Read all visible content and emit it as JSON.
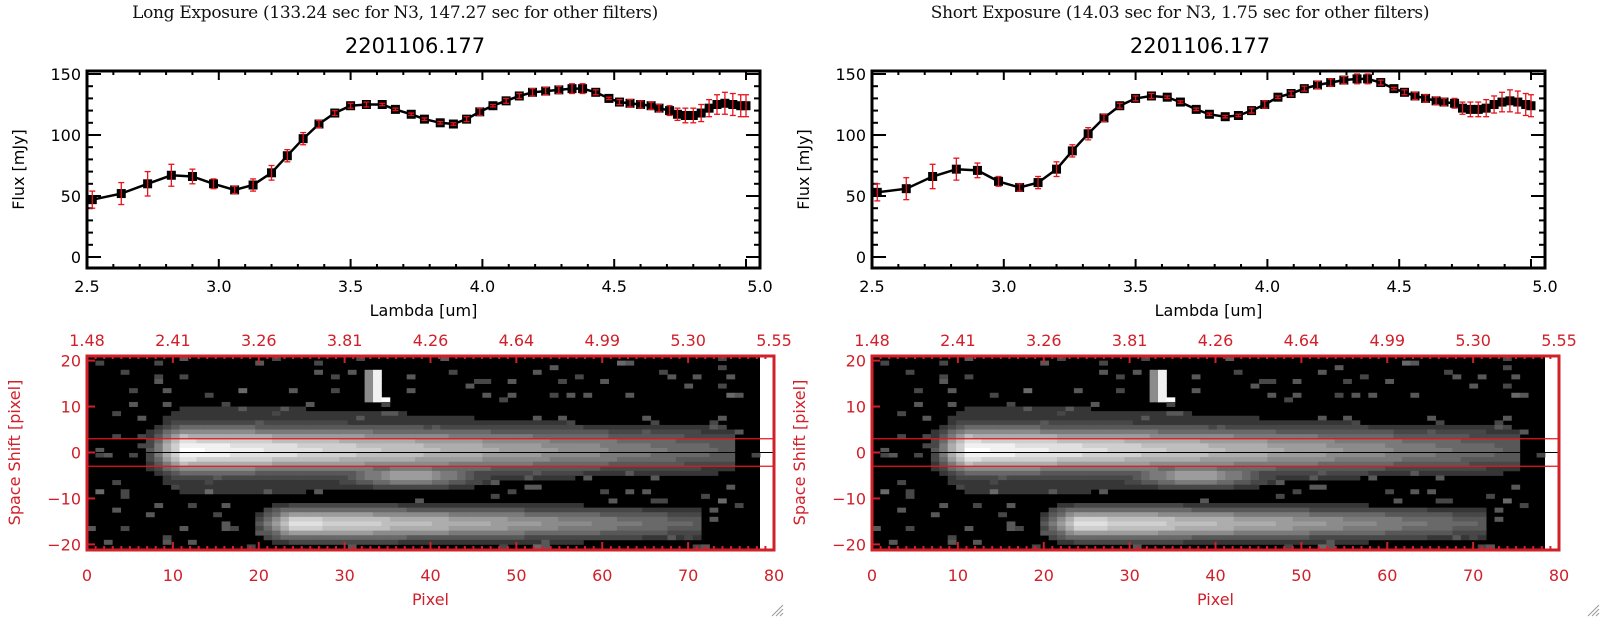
{
  "panels": [
    {
      "id": "long",
      "exposure_title": "Long Exposure (133.24 sec for N3, 147.27 sec for other filters)",
      "object_title": "2201106.177"
    },
    {
      "id": "short",
      "exposure_title": "Short Exposure (14.03 sec for N3, 1.75 sec for other filters)",
      "object_title": "2201106.177"
    }
  ],
  "colors": {
    "line": "#000000",
    "errorbar": "#e8141c",
    "image_frame": "#d0202a",
    "aperture": "#e8141c",
    "center": "#000000"
  },
  "chart_data": [
    {
      "type": "line",
      "panel": "long",
      "title": "2201106.177",
      "xlabel": "Lambda [um]",
      "ylabel": "Flux [mJy]",
      "xlim": [
        2.5,
        5.0
      ],
      "ylim": [
        -3,
        155
      ],
      "xticks": [
        2.5,
        3.0,
        3.5,
        4.0,
        4.5,
        5.0
      ],
      "xtick_labels": [
        "2.5",
        "3.0",
        "3.5",
        "4.0",
        "4.5",
        "5.0"
      ],
      "yticks": [
        0,
        50,
        100,
        150
      ],
      "ytick_labels": [
        "0",
        "50",
        "100",
        "150"
      ],
      "grid": false,
      "series": [
        {
          "name": "flux",
          "x": [
            2.52,
            2.63,
            2.73,
            2.82,
            2.9,
            2.98,
            3.06,
            3.13,
            3.2,
            3.26,
            3.32,
            3.38,
            3.44,
            3.5,
            3.56,
            3.62,
            3.67,
            3.73,
            3.78,
            3.84,
            3.89,
            3.94,
            3.99,
            4.04,
            4.09,
            4.14,
            4.19,
            4.24,
            4.29,
            4.34,
            4.38,
            4.43,
            4.48,
            4.52,
            4.56,
            4.6,
            4.64,
            4.67,
            4.71,
            4.74,
            4.77,
            4.8,
            4.83,
            4.86,
            4.89,
            4.92,
            4.95,
            4.98,
            5.0
          ],
          "y": [
            47,
            52,
            60,
            67,
            66,
            60,
            55,
            59,
            69,
            83,
            97,
            109,
            118,
            124,
            125,
            125,
            121,
            117,
            113,
            110,
            109,
            113,
            119,
            124,
            128,
            132,
            135,
            136,
            137,
            138,
            138,
            135,
            130,
            127,
            126,
            125,
            124,
            122,
            120,
            117,
            116,
            116,
            118,
            122,
            125,
            126,
            125,
            124,
            124
          ],
          "err": [
            7,
            9,
            10,
            9,
            6,
            4,
            3,
            5,
            6,
            5,
            5,
            3,
            2,
            2,
            2,
            1,
            1,
            1,
            1,
            1,
            1,
            2,
            3,
            1,
            2,
            2,
            3,
            3,
            3,
            4,
            4,
            2,
            1,
            2,
            3,
            3,
            3,
            3,
            4,
            5,
            6,
            6,
            7,
            7,
            8,
            9,
            9,
            9,
            9
          ]
        }
      ]
    },
    {
      "type": "line",
      "panel": "short",
      "title": "2201106.177",
      "xlabel": "Lambda [um]",
      "ylabel": "Flux [mJy]",
      "xlim": [
        2.5,
        5.0
      ],
      "ylim": [
        -3,
        155
      ],
      "xticks": [
        2.5,
        3.0,
        3.5,
        4.0,
        4.5,
        5.0
      ],
      "xtick_labels": [
        "2.5",
        "3.0",
        "3.5",
        "4.0",
        "4.5",
        "5.0"
      ],
      "yticks": [
        0,
        50,
        100,
        150
      ],
      "ytick_labels": [
        "0",
        "50",
        "100",
        "150"
      ],
      "grid": false,
      "series": [
        {
          "name": "flux",
          "x": [
            2.52,
            2.63,
            2.73,
            2.82,
            2.9,
            2.98,
            3.06,
            3.13,
            3.2,
            3.26,
            3.32,
            3.38,
            3.44,
            3.5,
            3.56,
            3.62,
            3.67,
            3.73,
            3.78,
            3.84,
            3.89,
            3.94,
            3.99,
            4.04,
            4.09,
            4.14,
            4.19,
            4.24,
            4.29,
            4.34,
            4.38,
            4.43,
            4.48,
            4.52,
            4.56,
            4.6,
            4.64,
            4.67,
            4.71,
            4.74,
            4.77,
            4.8,
            4.83,
            4.86,
            4.89,
            4.92,
            4.95,
            4.98,
            5.0
          ],
          "y": [
            53,
            56,
            66,
            72,
            71,
            62,
            57,
            61,
            72,
            87,
            101,
            114,
            124,
            130,
            132,
            131,
            127,
            121,
            117,
            115,
            116,
            120,
            125,
            131,
            134,
            138,
            141,
            143,
            145,
            146,
            146,
            143,
            138,
            135,
            132,
            130,
            128,
            127,
            126,
            122,
            121,
            121,
            122,
            125,
            127,
            128,
            127,
            125,
            124
          ],
          "err": [
            7,
            9,
            10,
            9,
            6,
            4,
            3,
            5,
            6,
            5,
            5,
            3,
            2,
            2,
            2,
            1,
            1,
            1,
            1,
            1,
            1,
            2,
            3,
            1,
            2,
            2,
            3,
            3,
            3,
            4,
            4,
            2,
            1,
            2,
            3,
            3,
            3,
            3,
            4,
            5,
            6,
            6,
            7,
            7,
            8,
            9,
            9,
            9,
            9
          ]
        }
      ]
    },
    {
      "type": "heatmap",
      "panel": "long",
      "xlabel": "Pixel",
      "ylabel": "Space Shift [pixel]",
      "xlim": [
        0,
        80
      ],
      "ylim": [
        -21,
        21
      ],
      "xticks": [
        0,
        10,
        20,
        30,
        40,
        50,
        60,
        70,
        80
      ],
      "xtick_labels": [
        "0",
        "10",
        "20",
        "30",
        "40",
        "50",
        "60",
        "70",
        "80"
      ],
      "yticks": [
        -20,
        -10,
        0,
        10,
        20
      ],
      "ytick_labels": [
        "−20",
        "−10",
        "0",
        "10",
        "20"
      ],
      "top_tick_labels": [
        "1.48",
        "2.41",
        "3.26",
        "3.81",
        "4.26",
        "4.64",
        "4.99",
        "5.30",
        "5.55"
      ],
      "aperture_lines": [
        3,
        -3
      ],
      "center_line": 0,
      "features": [
        {
          "name": "main trace",
          "x_range": [
            6,
            76
          ],
          "y_center": 0.5,
          "peak_x": 11,
          "peak": 1.0
        },
        {
          "name": "secondary trace",
          "x_range": [
            19,
            72
          ],
          "y_center": -15.5,
          "peak_x": 24,
          "peak": 0.85
        },
        {
          "name": "upper blob",
          "x_range": [
            33,
            35
          ],
          "y_range": [
            11,
            18
          ],
          "peak": 1.0
        },
        {
          "name": "under-trace glow",
          "x_range": [
            30,
            50
          ],
          "y_center": -5,
          "peak": 0.55
        }
      ]
    },
    {
      "type": "heatmap",
      "panel": "short",
      "xlabel": "Pixel",
      "ylabel": "Space Shift [pixel]",
      "xlim": [
        0,
        80
      ],
      "ylim": [
        -21,
        21
      ],
      "xticks": [
        0,
        10,
        20,
        30,
        40,
        50,
        60,
        70,
        80
      ],
      "xtick_labels": [
        "0",
        "10",
        "20",
        "30",
        "40",
        "50",
        "60",
        "70",
        "80"
      ],
      "yticks": [
        -20,
        -10,
        0,
        10,
        20
      ],
      "ytick_labels": [
        "−20",
        "−10",
        "0",
        "10",
        "20"
      ],
      "top_tick_labels": [
        "1.48",
        "2.41",
        "3.26",
        "3.81",
        "4.26",
        "4.64",
        "4.99",
        "5.30",
        "5.55"
      ],
      "aperture_lines": [
        3,
        -3
      ],
      "center_line": 0,
      "features": [
        {
          "name": "main trace",
          "x_range": [
            6,
            76
          ],
          "y_center": 0.5,
          "peak_x": 11,
          "peak": 1.0
        },
        {
          "name": "secondary trace",
          "x_range": [
            19,
            72
          ],
          "y_center": -15.5,
          "peak_x": 24,
          "peak": 0.85
        },
        {
          "name": "upper blob",
          "x_range": [
            33,
            35
          ],
          "y_range": [
            11,
            18
          ],
          "peak": 1.0
        },
        {
          "name": "under-trace glow",
          "x_range": [
            30,
            50
          ],
          "y_center": -5,
          "peak": 0.55
        }
      ]
    }
  ]
}
